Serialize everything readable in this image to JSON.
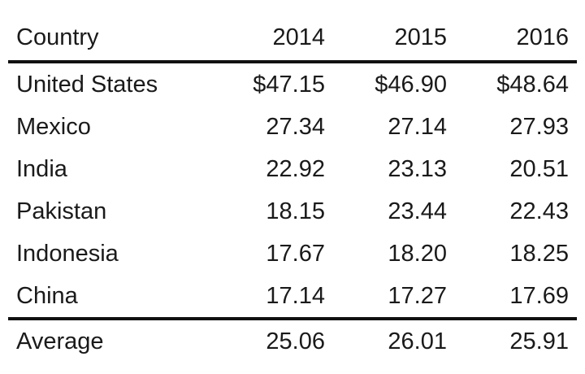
{
  "table": {
    "header": [
      "Country",
      "2014",
      "2015",
      "2016"
    ],
    "rows": [
      [
        "United States",
        "$47.15",
        "$46.90",
        "$48.64"
      ],
      [
        "Mexico",
        "27.34",
        "27.14",
        "27.93"
      ],
      [
        "India",
        "22.92",
        "23.13",
        "20.51"
      ],
      [
        "Pakistan",
        "18.15",
        "23.44",
        "22.43"
      ],
      [
        "Indonesia",
        "17.67",
        "18.20",
        "18.25"
      ],
      [
        "China",
        "17.14",
        "17.27",
        "17.69"
      ]
    ],
    "footer": [
      "Average",
      "25.06",
      "26.01",
      "25.91"
    ]
  }
}
